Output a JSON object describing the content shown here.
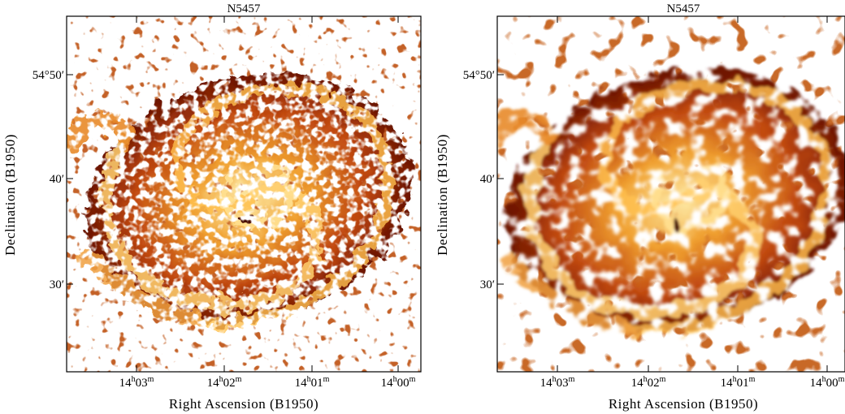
{
  "panels": [
    {
      "title": "N5457",
      "xlabel": "Right Ascension (B1950)",
      "ylabel": "Declination (B1950)",
      "xticks": [
        {
          "base": "14",
          "sup1": "h",
          "mid": "03",
          "sup2": "m"
        },
        {
          "base": "14",
          "sup1": "h",
          "mid": "02",
          "sup2": "m"
        },
        {
          "base": "14",
          "sup1": "h",
          "mid": "01",
          "sup2": "m"
        },
        {
          "base": "14",
          "sup1": "h",
          "mid": "00",
          "sup2": "m"
        }
      ],
      "yticks": [
        "54°50′",
        "40′",
        "30′"
      ]
    },
    {
      "title": "N5457",
      "xlabel": "Right Ascension (B1950)",
      "ylabel": "Declination (B1950)",
      "xticks": [
        {
          "base": "14",
          "sup1": "h",
          "mid": "03",
          "sup2": "m"
        },
        {
          "base": "14",
          "sup1": "h",
          "mid": "02",
          "sup2": "m"
        },
        {
          "base": "14",
          "sup1": "h",
          "mid": "01",
          "sup2": "m"
        },
        {
          "base": "14",
          "sup1": "h",
          "mid": "00",
          "sup2": "m"
        }
      ],
      "yticks": [
        "54°50′",
        "40′",
        "30′"
      ]
    }
  ]
}
